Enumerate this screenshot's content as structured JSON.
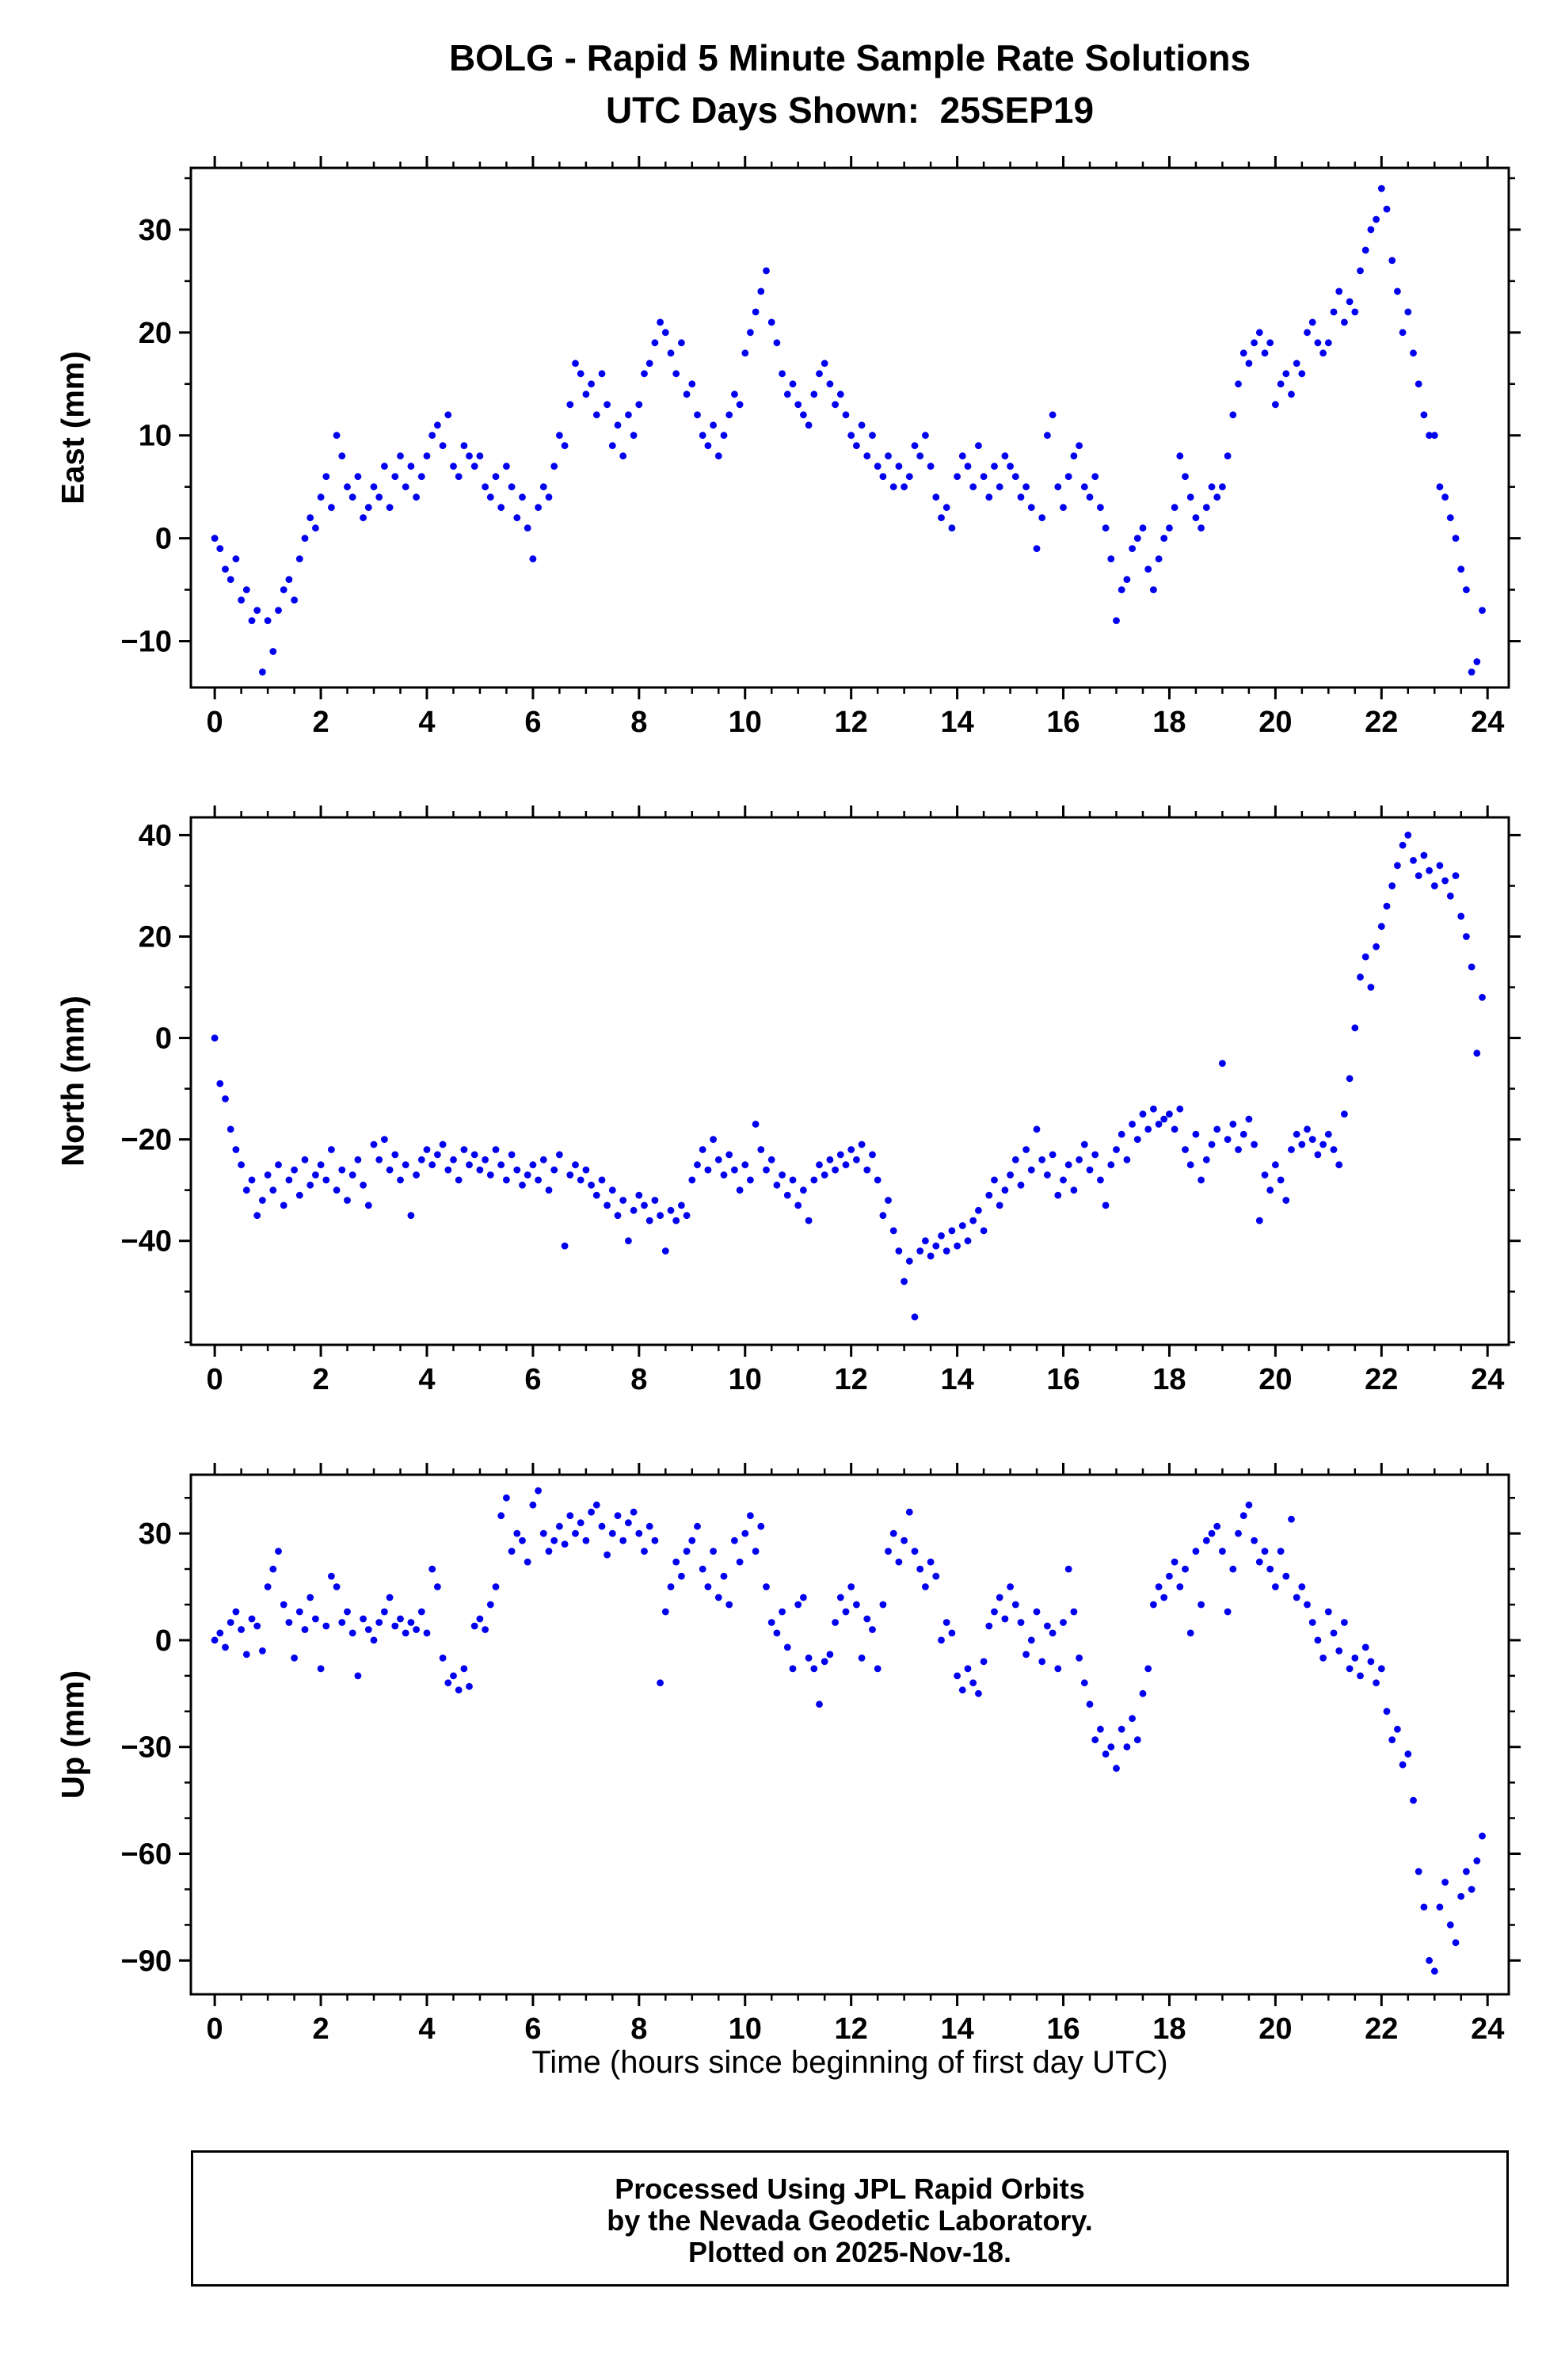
{
  "header": {
    "title_line1": "BOLG - Rapid 5 Minute Sample Rate Solutions",
    "title_line2": "UTC Days Shown:  25SEP19"
  },
  "xlabel": "Time (hours since beginning of first day UTC)",
  "footer": {
    "line1": "Processed Using JPL Rapid Orbits",
    "line2": "by the Nevada Geodetic Laboratory.",
    "line3": "Plotted on 2025-Nov-18."
  },
  "style": {
    "point_color": "#0000ee",
    "axis_color": "#000000"
  },
  "chart_data": [
    {
      "type": "scatter",
      "ylabel": "East (mm)",
      "x_start": 0,
      "x_step": 0.1,
      "xlim": [
        -0.45,
        24.4
      ],
      "ylim": [
        -14.5,
        36
      ],
      "xticks": [
        0,
        2,
        4,
        6,
        8,
        10,
        12,
        14,
        16,
        18,
        20,
        22,
        24
      ],
      "x_minor": 0.5,
      "yticks": [
        -10,
        0,
        10,
        20,
        30
      ],
      "y_minor": 5,
      "y": [
        0,
        -1,
        -3,
        -4,
        -2,
        -6,
        -5,
        -8,
        -7,
        -13,
        -8,
        -11,
        -7,
        -5,
        -4,
        -6,
        -2,
        0,
        2,
        1,
        4,
        6,
        3,
        10,
        8,
        5,
        4,
        6,
        2,
        3,
        5,
        4,
        7,
        3,
        6,
        8,
        5,
        7,
        4,
        6,
        8,
        10,
        11,
        9,
        12,
        7,
        6,
        9,
        8,
        7,
        8,
        5,
        4,
        6,
        3,
        7,
        5,
        2,
        4,
        1,
        -2,
        3,
        5,
        4,
        7,
        10,
        9,
        13,
        17,
        16,
        14,
        15,
        12,
        16,
        13,
        9,
        11,
        8,
        12,
        10,
        13,
        16,
        17,
        19,
        21,
        20,
        18,
        16,
        19,
        14,
        15,
        12,
        10,
        9,
        11,
        8,
        10,
        12,
        14,
        13,
        18,
        20,
        22,
        24,
        26,
        21,
        19,
        16,
        14,
        15,
        13,
        12,
        11,
        14,
        16,
        17,
        15,
        13,
        14,
        12,
        10,
        9,
        11,
        8,
        10,
        7,
        6,
        8,
        5,
        7,
        5,
        6,
        9,
        8,
        10,
        7,
        4,
        2,
        3,
        1,
        6,
        8,
        7,
        5,
        9,
        6,
        4,
        7,
        5,
        8,
        7,
        6,
        4,
        5,
        3,
        -1,
        2,
        10,
        12,
        5,
        3,
        6,
        8,
        9,
        5,
        4,
        6,
        3,
        1,
        -2,
        -8,
        -5,
        -4,
        -1,
        0,
        1,
        -3,
        -5,
        -2,
        0,
        1,
        3,
        8,
        6,
        4,
        2,
        1,
        3,
        5,
        4,
        5,
        8,
        12,
        15,
        18,
        17,
        19,
        20,
        18,
        19,
        13,
        15,
        16,
        14,
        17,
        16,
        20,
        21,
        19,
        18,
        19,
        22,
        24,
        21,
        23,
        22,
        26,
        28,
        30,
        31,
        34,
        32,
        27,
        24,
        20,
        22,
        18,
        15,
        12,
        10,
        10,
        5,
        4,
        2,
        0,
        -3,
        -5,
        -13,
        -12,
        -7
      ]
    },
    {
      "type": "scatter",
      "ylabel": "North (mm)",
      "x_start": 0,
      "x_step": 0.1,
      "xlim": [
        -0.45,
        24.4
      ],
      "ylim": [
        -60.5,
        43.5
      ],
      "xticks": [
        0,
        2,
        4,
        6,
        8,
        10,
        12,
        14,
        16,
        18,
        20,
        22,
        24
      ],
      "x_minor": 0.5,
      "yticks": [
        -40,
        -20,
        0,
        20,
        40
      ],
      "y_minor": 10,
      "y": [
        0,
        -9,
        -12,
        -18,
        -22,
        -25,
        -30,
        -28,
        -35,
        -32,
        -27,
        -30,
        -25,
        -33,
        -28,
        -26,
        -31,
        -24,
        -29,
        -27,
        -25,
        -28,
        -22,
        -30,
        -26,
        -32,
        -27,
        -24,
        -29,
        -33,
        -21,
        -24,
        -20,
        -26,
        -23,
        -28,
        -25,
        -35,
        -27,
        -24,
        -22,
        -25,
        -23,
        -21,
        -26,
        -24,
        -28,
        -22,
        -25,
        -23,
        -26,
        -24,
        -27,
        -22,
        -25,
        -28,
        -23,
        -26,
        -29,
        -27,
        -25,
        -28,
        -24,
        -30,
        -26,
        -23,
        -41,
        -27,
        -25,
        -28,
        -26,
        -29,
        -31,
        -28,
        -33,
        -30,
        -35,
        -32,
        -40,
        -34,
        -31,
        -33,
        -36,
        -32,
        -35,
        -42,
        -34,
        -36,
        -33,
        -35,
        -28,
        -25,
        -22,
        -26,
        -20,
        -24,
        -27,
        -23,
        -26,
        -30,
        -25,
        -28,
        -17,
        -22,
        -26,
        -24,
        -29,
        -27,
        -31,
        -28,
        -33,
        -30,
        -36,
        -28,
        -25,
        -27,
        -24,
        -26,
        -23,
        -25,
        -22,
        -24,
        -21,
        -26,
        -23,
        -28,
        -35,
        -32,
        -38,
        -42,
        -48,
        -44,
        -55,
        -42,
        -40,
        -43,
        -41,
        -39,
        -42,
        -38,
        -41,
        -37,
        -40,
        -36,
        -34,
        -38,
        -31,
        -28,
        -33,
        -30,
        -27,
        -24,
        -29,
        -22,
        -26,
        -18,
        -24,
        -27,
        -23,
        -31,
        -28,
        -25,
        -30,
        -24,
        -21,
        -26,
        -23,
        -28,
        -33,
        -25,
        -22,
        -19,
        -24,
        -17,
        -20,
        -15,
        -18,
        -14,
        -17,
        -16,
        -15,
        -18,
        -14,
        -22,
        -25,
        -19,
        -28,
        -24,
        -21,
        -18,
        -5,
        -20,
        -17,
        -22,
        -19,
        -16,
        -21,
        -36,
        -27,
        -30,
        -25,
        -28,
        -32,
        -22,
        -19,
        -21,
        -18,
        -20,
        -23,
        -21,
        -19,
        -22,
        -25,
        -15,
        -8,
        2,
        12,
        16,
        10,
        18,
        22,
        26,
        30,
        34,
        38,
        40,
        35,
        32,
        36,
        33,
        30,
        34,
        31,
        28,
        32,
        24,
        20,
        14,
        -3,
        8
      ]
    },
    {
      "type": "scatter",
      "ylabel": "Up (mm)",
      "xlabel": "Time (hours since beginning of first day UTC)",
      "x_start": 0,
      "x_step": 0.1,
      "xlim": [
        -0.45,
        24.4
      ],
      "ylim": [
        -99.5,
        46.5
      ],
      "xticks": [
        0,
        2,
        4,
        6,
        8,
        10,
        12,
        14,
        16,
        18,
        20,
        22,
        24
      ],
      "x_minor": 0.5,
      "yticks": [
        -90,
        -60,
        -30,
        0,
        30
      ],
      "y_minor": 10,
      "y": [
        0,
        2,
        -2,
        5,
        8,
        3,
        -4,
        6,
        4,
        -3,
        15,
        20,
        25,
        10,
        5,
        -5,
        8,
        3,
        12,
        6,
        -8,
        4,
        18,
        15,
        5,
        8,
        2,
        -10,
        6,
        3,
        0,
        5,
        8,
        12,
        4,
        6,
        2,
        5,
        3,
        8,
        2,
        20,
        15,
        -5,
        -12,
        -10,
        -14,
        -8,
        -13,
        4,
        6,
        3,
        10,
        15,
        35,
        40,
        25,
        30,
        28,
        22,
        38,
        42,
        30,
        25,
        28,
        32,
        27,
        35,
        30,
        33,
        28,
        36,
        38,
        32,
        24,
        30,
        35,
        28,
        33,
        36,
        30,
        25,
        32,
        28,
        -12,
        8,
        15,
        22,
        18,
        25,
        28,
        32,
        20,
        15,
        25,
        12,
        18,
        10,
        28,
        22,
        30,
        35,
        25,
        32,
        15,
        5,
        2,
        8,
        -2,
        -8,
        10,
        12,
        -5,
        -8,
        -18,
        -6,
        -4,
        5,
        12,
        8,
        15,
        10,
        -5,
        6,
        3,
        -8,
        10,
        25,
        30,
        22,
        28,
        36,
        25,
        20,
        15,
        22,
        18,
        0,
        5,
        2,
        -10,
        -14,
        -8,
        -12,
        -15,
        -6,
        4,
        8,
        12,
        6,
        15,
        10,
        5,
        -4,
        0,
        8,
        -6,
        4,
        2,
        -8,
        5,
        20,
        8,
        -5,
        -12,
        -18,
        -28,
        -25,
        -32,
        -30,
        -36,
        -25,
        -30,
        -22,
        -28,
        -15,
        -8,
        10,
        15,
        12,
        18,
        22,
        15,
        20,
        2,
        25,
        10,
        28,
        30,
        32,
        25,
        8,
        20,
        30,
        35,
        38,
        28,
        22,
        25,
        20,
        15,
        25,
        18,
        34,
        12,
        15,
        10,
        5,
        0,
        -5,
        8,
        2,
        -3,
        5,
        -8,
        -5,
        -10,
        -2,
        -6,
        -12,
        -8,
        -20,
        -28,
        -25,
        -35,
        -32,
        -45,
        -65,
        -75,
        -90,
        -93,
        -75,
        -68,
        -80,
        -85,
        -72,
        -65,
        -70,
        -62,
        -55
      ]
    }
  ]
}
